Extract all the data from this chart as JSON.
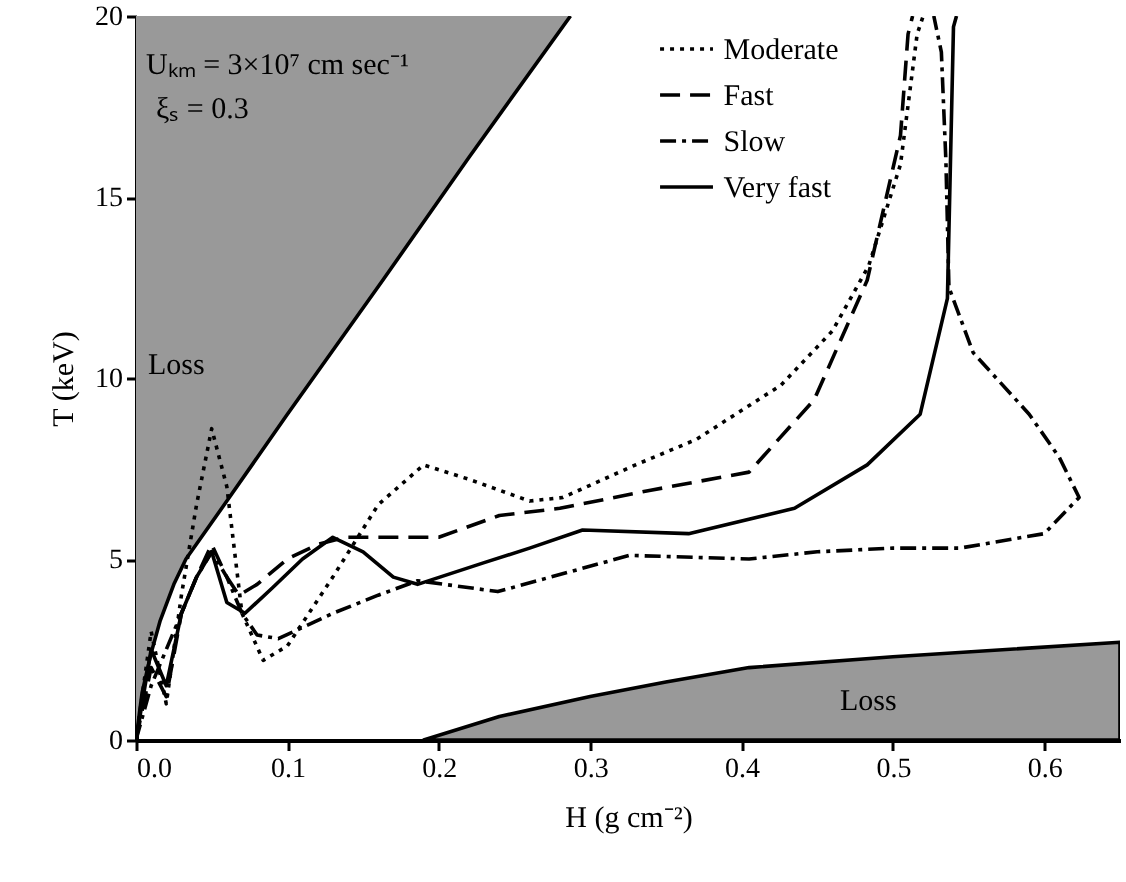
{
  "chart_data": {
    "type": "line",
    "xlabel": "H (g cm⁻²)",
    "ylabel": "T (keV)",
    "xlim": [
      0,
      0.65
    ],
    "ylim": [
      0,
      20
    ],
    "xticks": [
      {
        "value": 0,
        "label": "0.0"
      },
      0.1,
      0.2,
      0.3,
      0.4,
      0.5,
      0.6
    ],
    "yticks": [
      0,
      5,
      10,
      15,
      20
    ],
    "grid": false,
    "legend": "top",
    "marker": "none",
    "annotations": [
      "Uₖₘ = 3×10⁷  cm sec⁻¹",
      "ξₛ = 0.3",
      "Loss",
      "Loss"
    ],
    "series": [
      {
        "type": "line",
        "color": "#000000",
        "x": [
          0,
          0.004,
          0.01,
          0.016,
          0.025,
          0.033,
          0.06,
          0.1,
          0.163,
          0.22,
          0.287
        ],
        "values": [
          0,
          1.3,
          2.4,
          3.3,
          4.3,
          5,
          6.6,
          9,
          12.7,
          16.1,
          20
        ],
        "lower": [
          0,
          1.3,
          2.4,
          3.3,
          4.3,
          5,
          6.6,
          9,
          12.7,
          16.1,
          20
        ],
        "upper": [
          20,
          20,
          20,
          20,
          20,
          20,
          20,
          20,
          20,
          20,
          20
        ]
      },
      {
        "type": "area",
        "color": "#999999",
        "x": [
          0.19,
          0.24,
          0.3,
          0.35,
          0.405,
          0.5,
          0.65
        ],
        "values": [
          0,
          0.65,
          1.2,
          1.6,
          2.0,
          2.3,
          2.7
        ]
      },
      {
        "name": "Moderate",
        "color": "#000000",
        "line_style": "dotted",
        "x": [
          0,
          0.005,
          0.01,
          0.015,
          0.02,
          0.025,
          0.03,
          0.04,
          0.05,
          0.06,
          0.07,
          0.084,
          0.1,
          0.13,
          0.16,
          0.19,
          0.22,
          0.26,
          0.282,
          0.33,
          0.37,
          0.426,
          0.46,
          0.484,
          0.505,
          0.516,
          0.52
        ],
        "values": [
          0,
          1.5,
          3.0,
          2.0,
          1.0,
          2.5,
          4,
          6.5,
          8.6,
          7,
          3.5,
          2.2,
          2.6,
          4.5,
          6.5,
          7.6,
          7.2,
          6.6,
          6.7,
          7.6,
          8.3,
          9.8,
          11.3,
          13.1,
          15.9,
          19.5,
          20
        ]
      },
      {
        "name": "Fast",
        "color": "#000000",
        "line_style": "dashed",
        "x": [
          0,
          0.01,
          0.02,
          0.03,
          0.04,
          0.05,
          0.06,
          0.068,
          0.08,
          0.1,
          0.12,
          0.138,
          0.2,
          0.24,
          0.28,
          0.34,
          0.405,
          0.448,
          0.483,
          0.505,
          0.51,
          0.513
        ],
        "values": [
          0,
          2,
          1.2,
          3.5,
          4.5,
          5.4,
          4.5,
          4.0,
          4.3,
          5,
          5.4,
          5.6,
          5.6,
          6.2,
          6.4,
          6.9,
          7.4,
          9.4,
          12.7,
          16.7,
          19.5,
          20
        ]
      },
      {
        "name": "Slow",
        "color": "#000000",
        "line_style": "dashdot",
        "x": [
          0,
          0.01,
          0.02,
          0.03,
          0.04,
          0.05,
          0.06,
          0.07,
          0.08,
          0.094,
          0.13,
          0.16,
          0.186,
          0.239,
          0.326,
          0.405,
          0.45,
          0.5,
          0.544,
          0.6,
          0.623,
          0.61,
          0.59,
          0.553,
          0.537,
          0.535,
          0.532,
          0.527
        ],
        "values": [
          0,
          1.5,
          2.5,
          3.5,
          4.5,
          5.2,
          4.5,
          3.5,
          2.9,
          2.8,
          3.5,
          4.0,
          4.4,
          4.1,
          5.1,
          5.0,
          5.2,
          5.3,
          5.3,
          5.7,
          6.7,
          7.8,
          9,
          10.7,
          12.5,
          16,
          19,
          20
        ]
      },
      {
        "name": "Very fast",
        "color": "#000000",
        "line_style": "solid",
        "x": [
          0,
          0.01,
          0.02,
          0.03,
          0.04,
          0.05,
          0.06,
          0.072,
          0.09,
          0.11,
          0.13,
          0.15,
          0.17,
          0.186,
          0.23,
          0.26,
          0.295,
          0.365,
          0.435,
          0.483,
          0.518,
          0.536,
          0.54,
          0.542
        ],
        "values": [
          0,
          2.5,
          1.5,
          3.5,
          4.5,
          5.2,
          3.8,
          3.5,
          4.2,
          5,
          5.6,
          5.2,
          4.5,
          4.3,
          4.9,
          5.3,
          5.8,
          5.7,
          6.4,
          7.6,
          9.0,
          12.2,
          19.7,
          20
        ]
      }
    ]
  }
}
